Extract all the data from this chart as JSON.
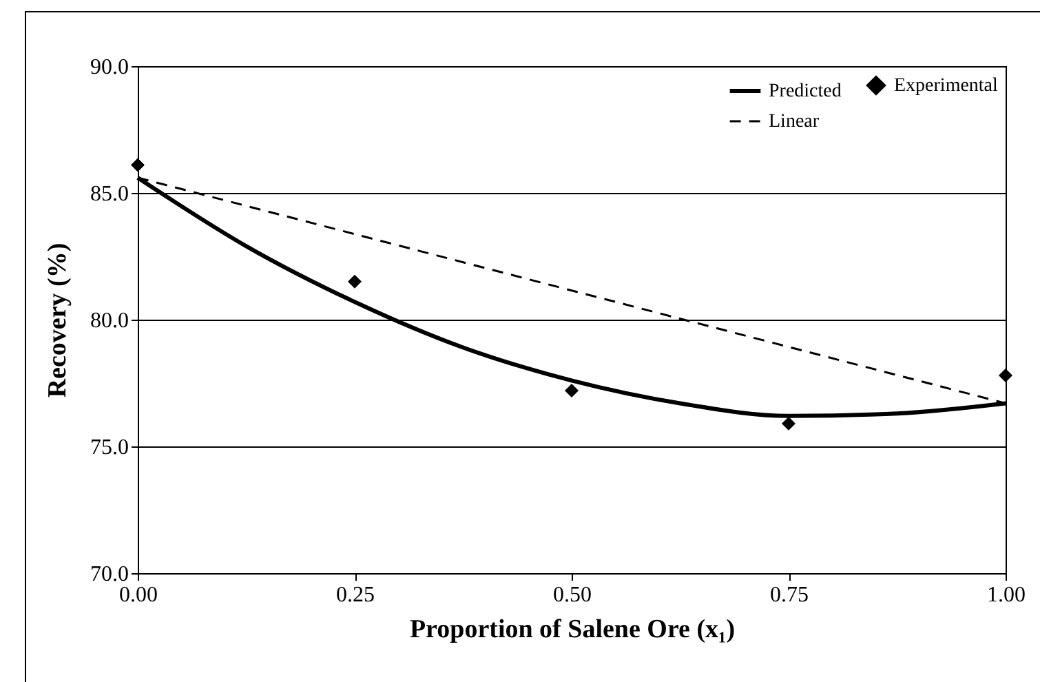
{
  "chart_data": {
    "type": "line",
    "xlabel": "Proportion of Salene Ore (x₁)",
    "ylabel": "Recovery (%)",
    "xlim": [
      0,
      1
    ],
    "ylim": [
      70,
      90
    ],
    "xticks": [
      {
        "value": 0,
        "label": "0.00"
      },
      {
        "value": 0.25,
        "label": "0.25"
      },
      {
        "value": 0.5,
        "label": "0.50"
      },
      {
        "value": 0.75,
        "label": "0.75"
      },
      {
        "value": 1,
        "label": "1.00"
      }
    ],
    "yticks": [
      {
        "value": 70,
        "label": "70.0"
      },
      {
        "value": 75,
        "label": "75.0"
      },
      {
        "value": 80,
        "label": "80.0"
      },
      {
        "value": 85,
        "label": "85.0"
      },
      {
        "value": 90,
        "label": "90.0"
      }
    ],
    "grid": "y",
    "legend": "top right",
    "series": [
      {
        "name": "Experimental",
        "type": "scatter",
        "marker": "diamond",
        "color": "#000000",
        "x": [
          0,
          0.25,
          0.5,
          0.75,
          1
        ],
        "values": [
          86.1,
          81.5,
          77.2,
          75.9,
          77.8
        ]
      },
      {
        "name": "Predicted",
        "type": "line",
        "line_style": "solid",
        "color": "#000000",
        "x": [
          0,
          0.125,
          0.25,
          0.375,
          0.5,
          0.625,
          0.75,
          0.875,
          1
        ],
        "values": [
          85.6,
          82.9,
          80.7,
          78.9,
          77.6,
          76.7,
          76.2,
          76.3,
          76.7
        ]
      },
      {
        "name": "Linear",
        "type": "line",
        "line_style": "dashed",
        "color": "#000000",
        "x": [
          0,
          1
        ],
        "values": [
          85.6,
          76.7
        ]
      }
    ]
  }
}
